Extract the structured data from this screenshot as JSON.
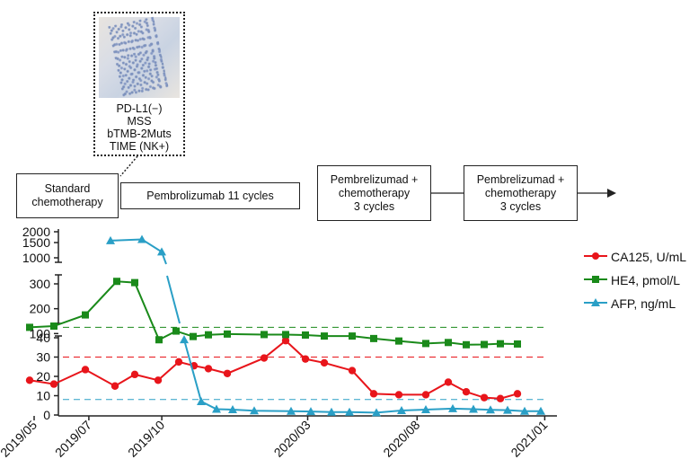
{
  "biomarker": {
    "lines": [
      "PD-L1(−)",
      "MSS",
      "bTMB-2Muts",
      "TIME (NK+)"
    ]
  },
  "timeline": {
    "boxes": [
      {
        "lines": [
          "Standard",
          "chemotherapy"
        ]
      },
      {
        "lines": [
          "Pembrolizumab 11 cycles"
        ]
      },
      {
        "lines": [
          "Pembrelizumad +",
          "chemotherapy",
          "3 cycles"
        ]
      },
      {
        "lines": [
          "Pembrelizumad +",
          "chemotherapy",
          "3 cycles"
        ]
      }
    ]
  },
  "chart_data": {
    "type": "line",
    "x_tick_labels": [
      "2019/05",
      "2019/07",
      "2019/10",
      "2020/03",
      "2020/08",
      "2021/01"
    ],
    "x_tick_index": [
      0,
      3,
      7,
      15,
      21,
      28
    ],
    "panels": [
      {
        "name": "top",
        "ticks": [
          1000,
          1500,
          2000
        ],
        "scale": "log"
      },
      {
        "name": "middle",
        "ticks": [
          100,
          200,
          300
        ]
      },
      {
        "name": "bottom",
        "ticks": [
          0,
          10,
          20,
          30,
          40
        ]
      }
    ],
    "series": [
      {
        "name": "CA125, U/mL",
        "color": "#e8151b",
        "marker": "circle",
        "threshold": 30,
        "points": [
          [
            0,
            18
          ],
          [
            1,
            16
          ],
          [
            2,
            23.5
          ],
          [
            3,
            15
          ],
          [
            4,
            21
          ],
          [
            5,
            18
          ],
          [
            6,
            27.5
          ],
          [
            7,
            25.5
          ],
          [
            8,
            24
          ],
          [
            9,
            21.5
          ],
          [
            10,
            29.5
          ],
          [
            11,
            38.5
          ],
          [
            12,
            29
          ],
          [
            13,
            27
          ],
          [
            14,
            23
          ],
          [
            15,
            11
          ],
          [
            16,
            10.5
          ],
          [
            17,
            10.5
          ],
          [
            18,
            17
          ],
          [
            19,
            12
          ],
          [
            20,
            9
          ],
          [
            21,
            8.5
          ],
          [
            22,
            11
          ]
        ]
      },
      {
        "name": "HE4, pmol/L",
        "color": "#1a8a1a",
        "marker": "square",
        "threshold": 125,
        "points": [
          [
            0,
            125
          ],
          [
            1,
            130
          ],
          [
            2,
            175
          ],
          [
            3,
            310
          ],
          [
            4,
            305
          ],
          [
            5,
            75
          ],
          [
            6,
            110
          ],
          [
            7,
            88
          ],
          [
            8,
            95
          ],
          [
            9,
            98
          ],
          [
            10,
            96
          ],
          [
            11,
            96
          ],
          [
            12,
            94
          ],
          [
            13,
            90
          ],
          [
            14,
            90
          ],
          [
            15,
            80
          ],
          [
            16,
            70
          ],
          [
            17,
            60
          ],
          [
            18,
            64
          ],
          [
            19,
            55
          ],
          [
            20,
            56
          ],
          [
            21,
            59
          ],
          [
            22,
            58
          ]
        ]
      },
      {
        "name": "AFP, ng/mL",
        "color": "#2a9fc6",
        "marker": "triangle",
        "threshold": 8,
        "points_high": [
          [
            0,
            1580
          ],
          [
            1,
            1630
          ],
          [
            2,
            1170
          ],
          [
            3,
            600
          ]
        ],
        "points_low": [
          [
            4,
            39
          ],
          [
            5,
            7
          ],
          [
            6,
            3
          ],
          [
            7,
            2.8
          ],
          [
            8,
            2.2
          ],
          [
            9,
            2
          ],
          [
            10,
            1.8
          ],
          [
            11,
            1.5
          ],
          [
            12,
            1.5
          ],
          [
            13,
            1.2
          ],
          [
            14,
            2.3
          ],
          [
            15,
            2.8
          ],
          [
            16,
            3.3
          ],
          [
            17,
            3
          ],
          [
            18,
            2.7
          ],
          [
            19,
            2.5
          ],
          [
            20,
            2
          ],
          [
            21,
            2
          ]
        ]
      }
    ]
  }
}
